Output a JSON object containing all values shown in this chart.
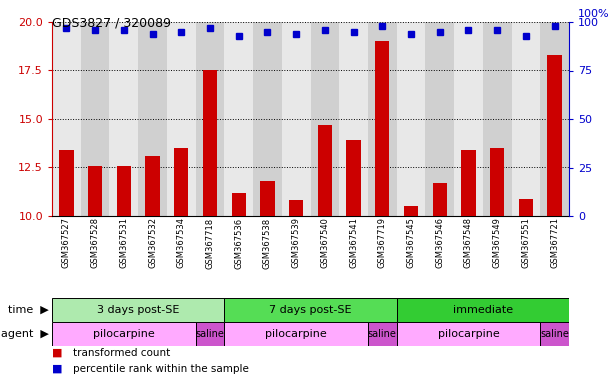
{
  "title": "GDS3827 / 320089",
  "samples": [
    "GSM367527",
    "GSM367528",
    "GSM367531",
    "GSM367532",
    "GSM367534",
    "GSM367718",
    "GSM367536",
    "GSM367538",
    "GSM367539",
    "GSM367540",
    "GSM367541",
    "GSM367719",
    "GSM367545",
    "GSM367546",
    "GSM367548",
    "GSM367549",
    "GSM367551",
    "GSM367721"
  ],
  "red_values": [
    13.4,
    12.6,
    12.6,
    13.1,
    13.5,
    17.5,
    11.2,
    11.8,
    10.8,
    14.7,
    13.9,
    19.0,
    10.5,
    11.7,
    13.4,
    13.5,
    10.9,
    18.3
  ],
  "blue_values": [
    97,
    96,
    96,
    94,
    95,
    97,
    93,
    95,
    94,
    96,
    95,
    98,
    94,
    95,
    96,
    96,
    93,
    98
  ],
  "time_groups": [
    {
      "label": "3 days post-SE",
      "start": 0,
      "end": 6,
      "color": "#aeeaae"
    },
    {
      "label": "7 days post-SE",
      "start": 6,
      "end": 12,
      "color": "#55dd55"
    },
    {
      "label": "immediate",
      "start": 12,
      "end": 18,
      "color": "#33cc33"
    }
  ],
  "agent_groups": [
    {
      "label": "pilocarpine",
      "start": 0,
      "end": 5,
      "color": "#ffaaff"
    },
    {
      "label": "saline",
      "start": 5,
      "end": 6,
      "color": "#cc55cc"
    },
    {
      "label": "pilocarpine",
      "start": 6,
      "end": 11,
      "color": "#ffaaff"
    },
    {
      "label": "saline",
      "start": 11,
      "end": 12,
      "color": "#cc55cc"
    },
    {
      "label": "pilocarpine",
      "start": 12,
      "end": 17,
      "color": "#ffaaff"
    },
    {
      "label": "saline",
      "start": 17,
      "end": 18,
      "color": "#cc55cc"
    }
  ],
  "ylim_left": [
    10,
    20
  ],
  "ylim_right": [
    0,
    100
  ],
  "yticks_left": [
    10,
    12.5,
    15,
    17.5,
    20
  ],
  "yticks_right": [
    0,
    25,
    50,
    75,
    100
  ],
  "red_color": "#cc0000",
  "blue_color": "#0000cc",
  "bar_width": 0.5,
  "col_bg_odd": "#e8e8e8",
  "col_bg_even": "#d0d0d0",
  "background_color": "#ffffff"
}
